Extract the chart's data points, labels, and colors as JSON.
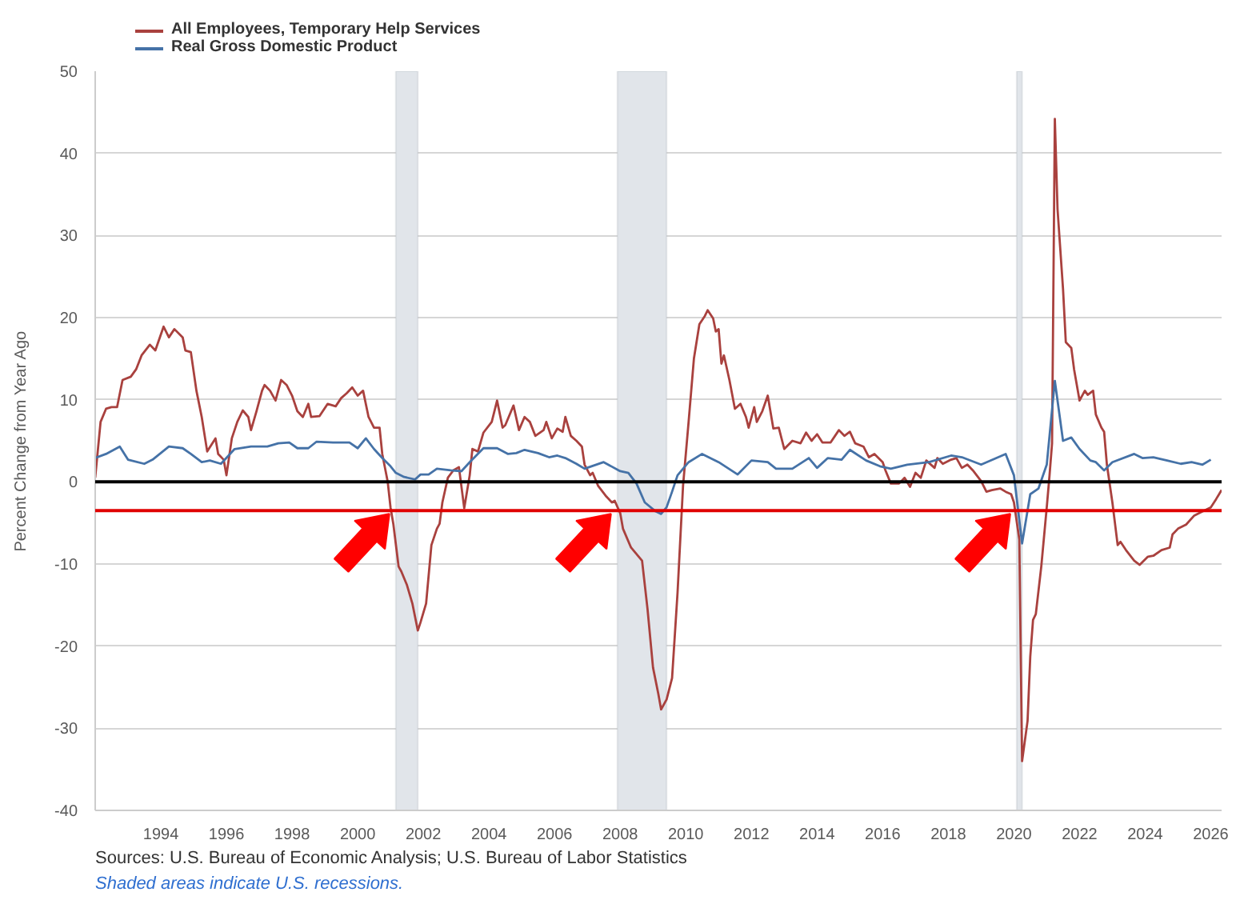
{
  "chart_data": {
    "type": "line",
    "ylabel": "Percent Change from Year Ago",
    "annotations": [
      "Sources: U.S. Bureau of Economic Analysis; U.S. Bureau of Labor Statistics",
      "Shaded areas indicate U.S. recessions."
    ],
    "xlim": [
      "1992-01",
      "2026-05"
    ],
    "xticks": [
      {
        "value": "1994",
        "label": "1994"
      },
      {
        "value": "1996",
        "label": "1996"
      },
      {
        "value": "1998",
        "label": "1998"
      },
      {
        "value": "2000",
        "label": "2000"
      },
      {
        "value": "2002",
        "label": "2002"
      },
      {
        "value": "2004",
        "label": "2004"
      },
      {
        "value": "2006",
        "label": "2006"
      },
      {
        "value": "2008",
        "label": "2008"
      },
      {
        "value": "2010",
        "label": "2010"
      },
      {
        "value": "2012",
        "label": "2012"
      },
      {
        "value": "2014",
        "label": "2014"
      },
      {
        "value": "2016",
        "label": "2016"
      },
      {
        "value": "2018",
        "label": "2018"
      },
      {
        "value": "2020",
        "label": "2020"
      },
      {
        "value": "2022",
        "label": "2022"
      },
      {
        "value": "2024",
        "label": "2024"
      },
      {
        "value": "2026",
        "label": "2026"
      }
    ],
    "ylim": [
      -40,
      50
    ],
    "yticks": [
      -40,
      -30,
      -20,
      -10,
      0,
      10,
      20,
      30,
      40,
      50
    ],
    "grid": "y",
    "legend": "top left",
    "ref_lines": [
      {
        "axis": "y",
        "value": 0,
        "color": "#000000"
      },
      {
        "axis": "y",
        "value": -3.5,
        "color": "#e00000"
      }
    ],
    "bands": [
      {
        "axis": "x",
        "from": "2001-03",
        "to": "2001-11",
        "color": "#e1e5ea"
      },
      {
        "axis": "x",
        "from": "2007-12",
        "to": "2009-06",
        "color": "#e1e5ea"
      },
      {
        "axis": "x",
        "from": "2020-02",
        "to": "2020-04",
        "color": "#e1e5ea"
      }
    ],
    "series": [
      {
        "name": "All Employees, Temporary Help Services",
        "color": "#a9413e",
        "x": [
          "1992-01",
          "1992-03",
          "1992-05",
          "1992-07",
          "1992-09",
          "1992-11",
          "1993-02",
          "1993-04",
          "1993-06",
          "1993-09",
          "1993-11",
          "1994-02",
          "1994-04",
          "1994-06",
          "1994-09",
          "1994-10",
          "1994-12",
          "1995-02",
          "1995-04",
          "1995-06",
          "1995-09",
          "1995-10",
          "1995-12",
          "1996-01",
          "1996-03",
          "1996-05",
          "1996-07",
          "1996-09",
          "1996-10",
          "1996-12",
          "1997-02",
          "1997-03",
          "1997-05",
          "1997-07",
          "1997-09",
          "1997-11",
          "1998-01",
          "1998-03",
          "1998-05",
          "1998-07",
          "1998-08",
          "1998-11",
          "1999-02",
          "1999-05",
          "1999-07",
          "1999-09",
          "1999-11",
          "2000-01",
          "2000-03",
          "2000-05",
          "2000-07",
          "2000-09",
          "2000-10",
          "2000-12",
          "2001-01",
          "2001-02",
          "2001-04",
          "2001-05",
          "2001-07",
          "2001-09",
          "2001-11",
          "2001-12",
          "2002-02",
          "2002-04",
          "2002-06",
          "2002-07",
          "2002-08",
          "2002-10",
          "2002-12",
          "2003-02",
          "2003-04",
          "2003-06",
          "2003-07",
          "2003-09",
          "2003-11",
          "2004-02",
          "2004-04",
          "2004-06",
          "2004-07",
          "2004-10",
          "2004-12",
          "2005-02",
          "2005-04",
          "2005-06",
          "2005-09",
          "2005-10",
          "2005-12",
          "2006-02",
          "2006-04",
          "2006-05",
          "2006-07",
          "2006-09",
          "2006-11",
          "2006-12",
          "2007-02",
          "2007-03",
          "2007-05",
          "2007-08",
          "2007-10",
          "2007-11",
          "2008-01",
          "2008-02",
          "2008-05",
          "2008-09",
          "2008-11",
          "2009-01",
          "2009-03",
          "2009-04",
          "2009-06",
          "2009-08",
          "2009-10",
          "2009-12",
          "2010-02",
          "2010-04",
          "2010-06",
          "2010-08",
          "2010-09",
          "2010-11",
          "2010-12",
          "2011-01",
          "2011-02",
          "2011-03",
          "2011-05",
          "2011-07",
          "2011-09",
          "2011-11",
          "2011-12",
          "2012-02",
          "2012-03",
          "2012-05",
          "2012-07",
          "2012-09",
          "2012-11",
          "2013-01",
          "2013-04",
          "2013-07",
          "2013-09",
          "2013-11",
          "2014-01",
          "2014-03",
          "2014-06",
          "2014-09",
          "2014-11",
          "2015-01",
          "2015-03",
          "2015-06",
          "2015-08",
          "2015-10",
          "2016-01",
          "2016-02",
          "2016-04",
          "2016-07",
          "2016-09",
          "2016-11",
          "2017-01",
          "2017-03",
          "2017-05",
          "2017-08",
          "2017-09",
          "2017-11",
          "2018-02",
          "2018-04",
          "2018-06",
          "2018-08",
          "2018-10",
          "2019-01",
          "2019-03",
          "2019-05",
          "2019-08",
          "2019-10",
          "2019-12",
          "2020-01",
          "2020-03",
          "2020-04",
          "2020-06",
          "2020-07",
          "2020-08",
          "2020-09",
          "2020-11",
          "2021-01",
          "2021-02",
          "2021-03",
          "2021-04",
          "2021-05",
          "2021-07",
          "2021-08",
          "2021-10",
          "2021-11",
          "2022-01",
          "2022-03",
          "2022-04",
          "2022-06",
          "2022-07",
          "2022-09",
          "2022-10",
          "2022-11",
          "2023-01",
          "2023-03",
          "2023-04",
          "2023-06",
          "2023-09",
          "2023-11",
          "2024-02",
          "2024-04",
          "2024-07",
          "2024-10",
          "2024-11",
          "2025-01",
          "2025-04",
          "2025-07",
          "2025-10",
          "2026-01",
          "2026-03",
          "2026-05"
        ],
        "values": [
          0.5,
          7.3,
          8.9,
          9.1,
          9.1,
          12.4,
          12.8,
          13.7,
          15.4,
          16.7,
          16.0,
          18.9,
          17.6,
          18.6,
          17.6,
          16.0,
          15.8,
          11.1,
          7.9,
          3.7,
          5.3,
          3.4,
          2.7,
          0.8,
          5.3,
          7.3,
          8.7,
          7.9,
          6.3,
          8.6,
          11.1,
          11.8,
          11.1,
          9.9,
          12.4,
          11.8,
          10.5,
          8.6,
          7.9,
          9.5,
          7.9,
          8.0,
          9.5,
          9.2,
          10.2,
          10.8,
          11.5,
          10.5,
          11.1,
          7.9,
          6.6,
          6.6,
          3.4,
          0,
          -3.1,
          -5.1,
          -10.3,
          -10.9,
          -12.5,
          -14.8,
          -18.1,
          -17.1,
          -14.8,
          -7.7,
          -5.7,
          -5.1,
          -2.5,
          0.5,
          1.4,
          1.8,
          -3.2,
          0.8,
          4.0,
          3.7,
          6.0,
          7.3,
          9.9,
          6.6,
          6.9,
          9.3,
          6.3,
          7.9,
          7.3,
          5.6,
          6.3,
          7.3,
          5.3,
          6.5,
          6.1,
          7.9,
          5.6,
          5.0,
          4.3,
          2.1,
          0.8,
          1.1,
          -0.5,
          -1.8,
          -2.5,
          -2.3,
          -3.8,
          -5.7,
          -8.0,
          -9.6,
          -15.5,
          -22.6,
          -25.8,
          -27.7,
          -26.5,
          -23.9,
          -13.5,
          -0.5,
          7.3,
          15.0,
          19.2,
          20.2,
          20.9,
          19.9,
          18.3,
          18.6,
          14.4,
          15.4,
          12.4,
          8.9,
          9.5,
          7.9,
          6.6,
          9.1,
          7.3,
          8.6,
          10.5,
          6.5,
          6.6,
          4.0,
          5.0,
          4.7,
          6.0,
          5.0,
          5.8,
          4.8,
          4.8,
          6.3,
          5.6,
          6.1,
          4.7,
          4.3,
          3.0,
          3.4,
          2.4,
          1.4,
          -0.2,
          -0.2,
          0.5,
          -0.6,
          1.1,
          0.5,
          2.6,
          1.7,
          2.9,
          2.2,
          2.7,
          2.9,
          1.7,
          2.1,
          1.4,
          0.1,
          -1.2,
          -1.0,
          -0.8,
          -1.2,
          -1.5,
          -2.5,
          -7.0,
          -34.0,
          -29.1,
          -21.3,
          -16.8,
          -16.1,
          -10.3,
          -3.1,
          0.8,
          4.7,
          44.2,
          33.2,
          23.5,
          17.0,
          16.3,
          13.7,
          9.9,
          11.1,
          10.6,
          11.1,
          8.2,
          6.6,
          6.1,
          2.1,
          -2.5,
          -7.7,
          -7.3,
          -8.3,
          -9.6,
          -10.1,
          -9.1,
          -9.0,
          -8.3,
          -8.0,
          -6.4,
          -5.7,
          -5.2,
          -4.1,
          -3.6,
          -3.1,
          -2.1,
          -1.0
        ]
      },
      {
        "name": "Real Gross Domestic Product",
        "color": "#4572a7",
        "x": [
          "1992-01",
          "1992-05",
          "1992-10",
          "1993-01",
          "1993-07",
          "1993-10",
          "1994-04",
          "1994-09",
          "1994-12",
          "1995-04",
          "1995-07",
          "1995-11",
          "1996-04",
          "1996-10",
          "1997-04",
          "1997-08",
          "1997-12",
          "1998-03",
          "1998-07",
          "1998-10",
          "1999-04",
          "1999-10",
          "2000-01",
          "2000-04",
          "2000-07",
          "2000-10",
          "2001-01",
          "2001-03",
          "2001-06",
          "2001-10",
          "2001-12",
          "2002-03",
          "2002-06",
          "2002-11",
          "2003-03",
          "2003-06",
          "2003-11",
          "2004-04",
          "2004-08",
          "2004-11",
          "2005-02",
          "2005-07",
          "2005-11",
          "2006-02",
          "2006-05",
          "2006-09",
          "2006-12",
          "2007-07",
          "2008-01",
          "2008-04",
          "2008-07",
          "2008-10",
          "2009-02",
          "2009-04",
          "2009-06",
          "2009-08",
          "2009-10",
          "2010-02",
          "2010-07",
          "2011-01",
          "2011-08",
          "2012-01",
          "2012-07",
          "2012-10",
          "2013-04",
          "2013-10",
          "2014-01",
          "2014-05",
          "2014-10",
          "2015-01",
          "2015-07",
          "2015-12",
          "2016-04",
          "2016-10",
          "2017-06",
          "2018-02",
          "2018-06",
          "2019-01",
          "2019-10",
          "2020-01",
          "2020-04",
          "2020-07",
          "2020-10",
          "2021-01",
          "2021-04",
          "2021-07",
          "2021-10",
          "2022-01",
          "2022-05",
          "2022-07",
          "2022-10",
          "2023-01",
          "2023-09",
          "2023-12",
          "2024-04",
          "2024-09",
          "2025-02",
          "2025-06",
          "2025-10",
          "2026-01"
        ],
        "values": [
          2.9,
          3.4,
          4.3,
          2.7,
          2.2,
          2.7,
          4.3,
          4.1,
          3.4,
          2.4,
          2.6,
          2.2,
          4.0,
          4.3,
          4.3,
          4.7,
          4.8,
          4.1,
          4.1,
          4.9,
          4.8,
          4.8,
          4.1,
          5.3,
          4.0,
          2.9,
          1.9,
          1.1,
          0.6,
          0.3,
          0.9,
          0.9,
          1.6,
          1.4,
          1.3,
          2.4,
          4.1,
          4.1,
          3.4,
          3.5,
          3.9,
          3.5,
          3.0,
          3.2,
          2.9,
          2.2,
          1.6,
          2.4,
          1.3,
          1.1,
          -0.2,
          -2.5,
          -3.6,
          -3.9,
          -3.1,
          -1.2,
          0.8,
          2.4,
          3.4,
          2.4,
          0.9,
          2.6,
          2.4,
          1.6,
          1.6,
          2.9,
          1.7,
          2.9,
          2.7,
          3.9,
          2.6,
          1.9,
          1.6,
          2.1,
          2.4,
          3.2,
          3.0,
          2.1,
          3.4,
          0.8,
          -7.5,
          -1.5,
          -0.8,
          2.1,
          12.3,
          5.0,
          5.4,
          4.0,
          2.6,
          2.4,
          1.4,
          2.4,
          3.4,
          2.9,
          3.0,
          2.6,
          2.2,
          2.4,
          2.1,
          2.7
        ]
      }
    ]
  }
}
